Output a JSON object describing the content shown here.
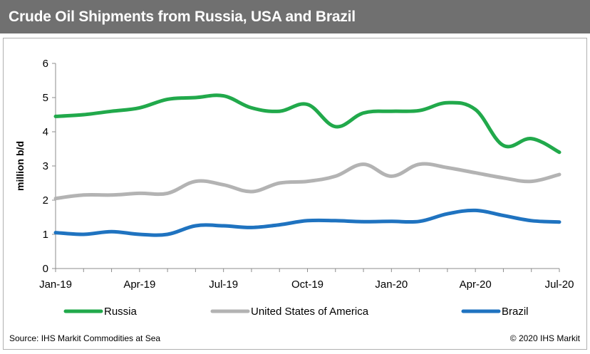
{
  "title": "Crude Oil Shipments from Russia, USA and Brazil",
  "source": "Source: IHS Markit Commodities at Sea",
  "copyright": "© 2020 IHS Markit",
  "colors": {
    "title_bar": "#707070",
    "russia": "#21a94b",
    "usa": "#b3b3b3",
    "brazil": "#1f73c0"
  },
  "chart_data": {
    "type": "line",
    "ylabel": "million b/d",
    "xlabel": "",
    "ylim": [
      0,
      6
    ],
    "yticks": [
      0,
      1,
      2,
      3,
      4,
      5,
      6
    ],
    "xticks": [
      "Jan-19",
      "Apr-19",
      "Jul-19",
      "Oct-19",
      "Jan-20",
      "Apr-20",
      "Jul-20"
    ],
    "legend_position": "bottom",
    "grid": false,
    "x": [
      "Jan-19",
      "Feb-19",
      "Mar-19",
      "Apr-19",
      "May-19",
      "Jun-19",
      "Jul-19",
      "Aug-19",
      "Sep-19",
      "Oct-19",
      "Nov-19",
      "Dec-19",
      "Jan-20",
      "Feb-20",
      "Mar-20",
      "Apr-20",
      "May-20",
      "Jun-20",
      "Jul-20"
    ],
    "series": [
      {
        "name": "Russia",
        "color": "#21a94b",
        "values": [
          4.45,
          4.5,
          4.6,
          4.7,
          4.95,
          5.0,
          5.05,
          4.7,
          4.6,
          4.8,
          4.15,
          4.55,
          4.6,
          4.62,
          4.85,
          4.65,
          3.6,
          3.8,
          3.4
        ]
      },
      {
        "name": "United States of America",
        "color": "#b3b3b3",
        "values": [
          2.05,
          2.15,
          2.15,
          2.2,
          2.2,
          2.55,
          2.45,
          2.25,
          2.5,
          2.55,
          2.7,
          3.05,
          2.7,
          3.05,
          2.95,
          2.8,
          2.65,
          2.55,
          2.75
        ]
      },
      {
        "name": "Brazil",
        "color": "#1f73c0",
        "values": [
          1.05,
          1.0,
          1.08,
          1.0,
          1.0,
          1.25,
          1.25,
          1.2,
          1.28,
          1.4,
          1.4,
          1.37,
          1.38,
          1.38,
          1.6,
          1.7,
          1.55,
          1.4,
          1.36
        ]
      }
    ]
  }
}
